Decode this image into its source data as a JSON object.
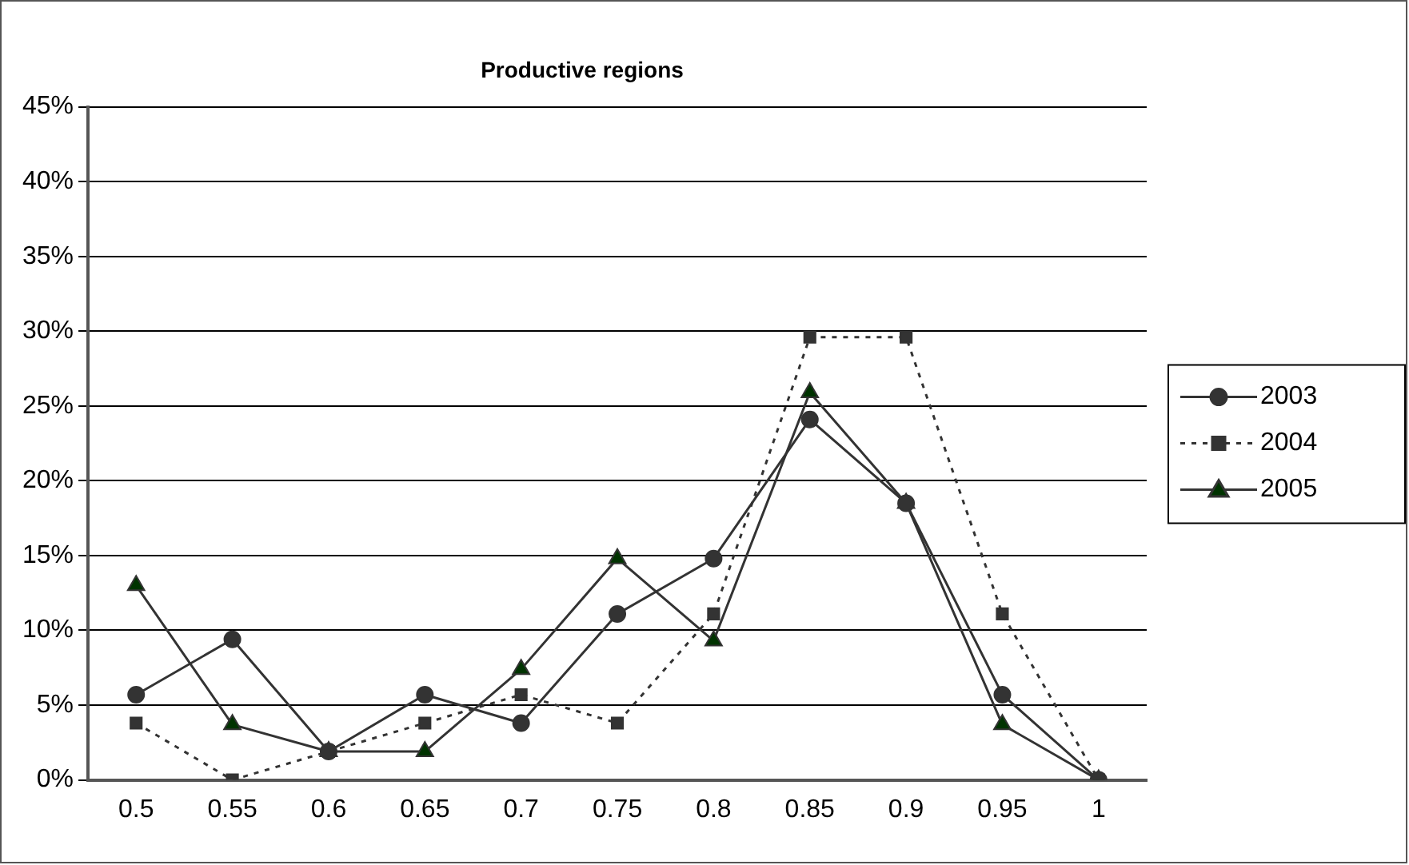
{
  "chart_data": {
    "type": "line",
    "title": "Productive regions",
    "categories": [
      "0.5",
      "0.55",
      "0.6",
      "0.65",
      "0.7",
      "0.75",
      "0.8",
      "0.85",
      "0.9",
      "0.95",
      "1"
    ],
    "series": [
      {
        "name": "2003",
        "color": "#333333",
        "marker": "circle",
        "line_style": "solid",
        "values": [
          5.7,
          9.4,
          1.9,
          5.7,
          3.8,
          11.1,
          14.8,
          24.1,
          18.5,
          5.7,
          0
        ]
      },
      {
        "name": "2004",
        "color": "#333333",
        "marker": "square",
        "line_style": "dotted",
        "values": [
          3.8,
          0,
          1.9,
          3.8,
          5.7,
          3.8,
          11.1,
          29.6,
          29.6,
          11.1,
          0
        ]
      },
      {
        "name": "2005",
        "color": "#003300",
        "marker": "triangle",
        "line_style": "solid",
        "values": [
          13,
          3.7,
          1.9,
          1.9,
          7.4,
          14.8,
          9.3,
          25.9,
          18.5,
          3.7,
          0
        ]
      }
    ],
    "ylim": [
      0,
      45
    ],
    "yticks": [
      {
        "value": 0,
        "label": "0%"
      },
      {
        "value": 5,
        "label": "5%"
      },
      {
        "value": 10,
        "label": "10%"
      },
      {
        "value": 15,
        "label": "15%"
      },
      {
        "value": 20,
        "label": "20%"
      },
      {
        "value": 25,
        "label": "25%"
      },
      {
        "value": 30,
        "label": "30%"
      },
      {
        "value": 35,
        "label": "35%"
      },
      {
        "value": 40,
        "label": "40%"
      },
      {
        "value": 45,
        "label": "45%"
      }
    ],
    "grid": "y",
    "legend": "right"
  }
}
